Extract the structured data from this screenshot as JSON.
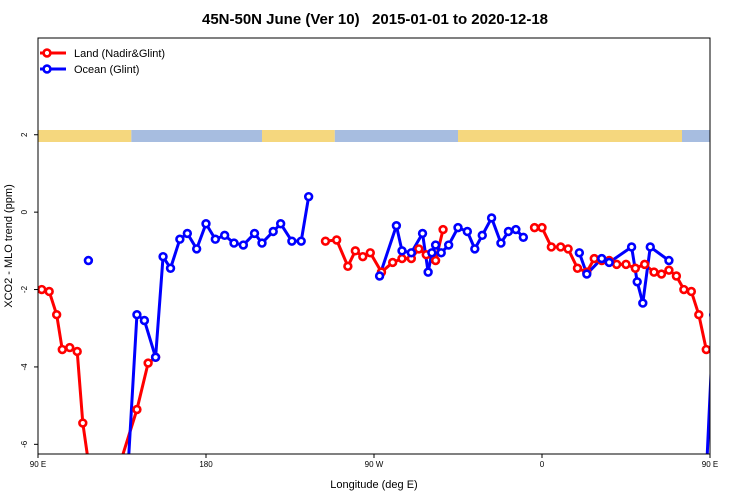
{
  "chart_data": {
    "type": "line",
    "title": "45N-50N June (Ver 10)   2015-01-01 to 2020-12-18",
    "xlabel": "Longitude (deg E)",
    "ylabel": "XCO2 - MLO trend (ppm)",
    "xlim": [
      90,
      450
    ],
    "ylim": [
      -6.25,
      4.5
    ],
    "x_ticks": [
      {
        "value": 90,
        "label": "90 E"
      },
      {
        "value": 180,
        "label": "180"
      },
      {
        "value": 270,
        "label": "90 W"
      },
      {
        "value": 360,
        "label": "0"
      },
      {
        "value": 450,
        "label": "90 E"
      },
      {
        "value": 540,
        "label": "180"
      }
    ],
    "y_ticks": [
      {
        "value": -6,
        "label": "-6"
      },
      {
        "value": -4,
        "label": "-4"
      },
      {
        "value": -2,
        "label": "-2"
      },
      {
        "value": 0,
        "label": "0"
      },
      {
        "value": 2,
        "label": "2"
      }
    ],
    "grid": false,
    "legend_position": "top-left",
    "surface_band": {
      "land_color": "#f5d77e",
      "ocean_color": "#a7bde0",
      "segments": [
        [
          "land",
          90,
          140
        ],
        [
          "ocean",
          140,
          210
        ],
        [
          "land",
          210,
          249
        ],
        [
          "ocean",
          249,
          315
        ],
        [
          "land",
          315,
          435
        ],
        [
          "ocean",
          435,
          475
        ],
        [
          "land",
          475,
          522
        ],
        [
          "ocean",
          522,
          540
        ]
      ]
    },
    "series": [
      {
        "name": "Land (Nadir&Glint)",
        "color": "#ff0000",
        "points": [
          [
            92,
            -2.0
          ],
          [
            96,
            -2.05
          ],
          [
            100,
            -2.65
          ],
          [
            103,
            -3.55
          ],
          [
            107,
            -3.5
          ],
          [
            111,
            -3.6
          ],
          [
            114,
            -5.45
          ],
          [
            118,
            -6.8
          ],
          [
            132,
            -6.8
          ],
          [
            143,
            -5.1
          ],
          [
            149,
            -3.9
          ],
          [
            153,
            -3.75
          ],
          [
            244,
            -0.75
          ],
          [
            250,
            -0.72
          ],
          [
            256,
            -1.4
          ],
          [
            260,
            -1.0
          ],
          [
            264,
            -1.15
          ],
          [
            268,
            -1.05
          ],
          [
            274,
            -1.55
          ],
          [
            280,
            -1.3
          ],
          [
            285,
            -1.2
          ],
          [
            290,
            -1.2
          ],
          [
            294,
            -0.95
          ],
          [
            298,
            -1.1
          ],
          [
            303,
            -1.25
          ],
          [
            307,
            -0.45
          ],
          [
            356,
            -0.4
          ],
          [
            360,
            -0.4
          ],
          [
            365,
            -0.9
          ],
          [
            370,
            -0.9
          ],
          [
            374,
            -0.95
          ],
          [
            379,
            -1.45
          ],
          [
            384,
            -1.55
          ],
          [
            388,
            -1.2
          ],
          [
            392,
            -1.25
          ],
          [
            396,
            -1.25
          ],
          [
            400,
            -1.35
          ],
          [
            405,
            -1.35
          ],
          [
            410,
            -1.45
          ],
          [
            415,
            -1.35
          ],
          [
            420,
            -1.55
          ],
          [
            424,
            -1.6
          ],
          [
            428,
            -1.5
          ],
          [
            432,
            -1.65
          ],
          [
            436,
            -2.0
          ],
          [
            440,
            -2.05
          ],
          [
            444,
            -2.65
          ],
          [
            448,
            -3.55
          ],
          [
            452,
            -3.5
          ],
          [
            456,
            -3.6
          ],
          [
            460,
            -5.45
          ],
          [
            464,
            -6.8
          ]
        ]
      },
      {
        "name": "Ocean (Glint)",
        "color": "#0000ff",
        "points": [
          [
            117,
            -1.25
          ],
          [
            138,
            -6.8
          ],
          [
            143,
            -2.65
          ],
          [
            147,
            -2.8
          ],
          [
            153,
            -3.75
          ],
          [
            157,
            -1.15
          ],
          [
            161,
            -1.45
          ],
          [
            166,
            -0.7
          ],
          [
            170,
            -0.55
          ],
          [
            175,
            -0.95
          ],
          [
            180,
            -0.3
          ],
          [
            185,
            -0.7
          ],
          [
            190,
            -0.6
          ],
          [
            195,
            -0.8
          ],
          [
            200,
            -0.85
          ],
          [
            206,
            -0.55
          ],
          [
            210,
            -0.8
          ],
          [
            216,
            -0.5
          ],
          [
            220,
            -0.3
          ],
          [
            226,
            -0.75
          ],
          [
            231,
            -0.75
          ],
          [
            235,
            0.4
          ],
          [
            273,
            -1.65
          ],
          [
            282,
            -0.35
          ],
          [
            285,
            -1.0
          ],
          [
            290,
            -1.05
          ],
          [
            296,
            -0.55
          ],
          [
            299,
            -1.55
          ],
          [
            301,
            -1.05
          ],
          [
            303,
            -0.85
          ],
          [
            306,
            -1.05
          ],
          [
            310,
            -0.85
          ],
          [
            315,
            -0.4
          ],
          [
            320,
            -0.5
          ],
          [
            324,
            -0.95
          ],
          [
            328,
            -0.6
          ],
          [
            333,
            -0.15
          ],
          [
            338,
            -0.8
          ],
          [
            342,
            -0.5
          ],
          [
            346,
            -0.45
          ],
          [
            350,
            -0.65
          ],
          [
            380,
            -1.05
          ],
          [
            384,
            -1.6
          ],
          [
            392,
            -1.2
          ],
          [
            396,
            -1.3
          ],
          [
            408,
            -0.9
          ],
          [
            411,
            -1.8
          ],
          [
            414,
            -2.35
          ],
          [
            418,
            -0.9
          ],
          [
            428,
            -1.25
          ],
          [
            448,
            -6.8
          ],
          [
            452,
            -2.65
          ],
          [
            456,
            -2.8
          ],
          [
            460,
            -3.75
          ],
          [
            464,
            -1.15
          ],
          [
            468,
            -1.45
          ],
          [
            473,
            -0.7
          ],
          [
            477,
            -0.55
          ],
          [
            482,
            -0.95
          ],
          [
            486,
            -0.3
          ]
        ]
      }
    ]
  }
}
